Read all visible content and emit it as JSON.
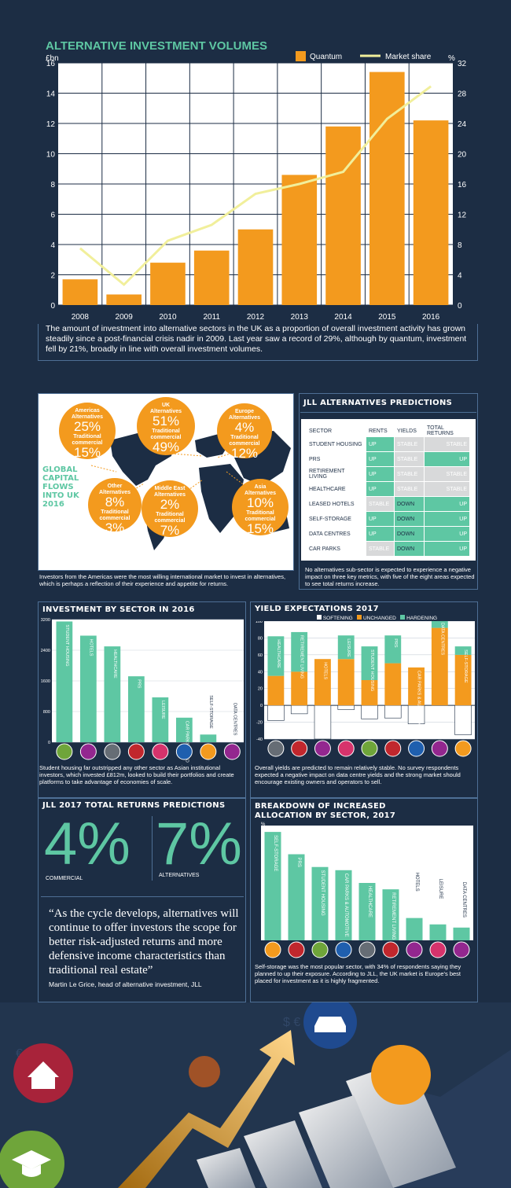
{
  "volumes": {
    "title": "ALTERNATIVE INVESTMENT VOLUMES",
    "left_unit": "£bn",
    "right_unit": "%",
    "legend_bar": "Quantum",
    "legend_line": "Market share",
    "caption": "The amount of investment into alternative sectors in the UK as a proportion of overall investment activity has grown steadily since a post-financial crisis nadir in 2009. Last year saw a record of 29%, although by quantum, investment fell by 21%, broadly in line with overall investment volumes."
  },
  "flows": {
    "title": "GLOBAL CAPITAL FLOWS INTO UK 2016",
    "title_lines": [
      "GLOBAL",
      "CAPITAL",
      "FLOWS",
      "INTO UK",
      "2016"
    ],
    "regions": [
      {
        "name": "Americas",
        "alt_label": "Alternatives",
        "alt": "25%",
        "trad_label": "Traditional commercial",
        "trad": "15%"
      },
      {
        "name": "UK",
        "alt_label": "Alternatives",
        "alt": "51%",
        "trad_label": "Traditional commercial",
        "trad": "49%"
      },
      {
        "name": "Europe",
        "alt_label": "Alternatives",
        "alt": "4%",
        "trad_label": "Traditional commercial",
        "trad": "12%"
      },
      {
        "name": "Other",
        "alt_label": "Alternatives",
        "alt": "8%",
        "trad_label": "Traditional commercial",
        "trad": "3%"
      },
      {
        "name": "Middle East",
        "alt_label": "Alternatives",
        "alt": "2%",
        "trad_label": "Traditional commercial",
        "trad": "7%"
      },
      {
        "name": "Asia",
        "alt_label": "Alternatives",
        "alt": "10%",
        "trad_label": "Traditional commercial",
        "trad": "15%"
      }
    ],
    "caption": "Investors from the Americas were the most willing international market to invest in alternatives, which is perhaps a reflection of their experience and appetite for returns."
  },
  "predictions": {
    "title": "JLL ALTERNATIVES PREDICTIONS",
    "headers": [
      "SECTOR",
      "RENTS",
      "YIELDS",
      "TOTAL RETURNS"
    ],
    "rows": [
      [
        "STUDENT HOUSING",
        "UP",
        "STABLE",
        "STABLE"
      ],
      [
        "PRS",
        "UP",
        "STABLE",
        "UP"
      ],
      [
        "RETIREMENT LIVING",
        "UP",
        "STABLE",
        "STABLE"
      ],
      [
        "HEALTHCARE",
        "UP",
        "STABLE",
        "STABLE"
      ],
      [
        "LEASED HOTELS",
        "STABLE",
        "DOWN",
        "UP"
      ],
      [
        "SELF-STORAGE",
        "UP",
        "DOWN",
        "UP"
      ],
      [
        "DATA CENTRES",
        "UP",
        "DOWN",
        "UP"
      ],
      [
        "CAR PARKS",
        "STABLE",
        "DOWN",
        "UP"
      ]
    ],
    "caption": "No alternatives sub-sector is expected to experience a negative impact on three key metrics, with five of the eight areas expected to see total returns increase."
  },
  "sector_invest": {
    "title": "INVESTMENT BY SECTOR IN 2016",
    "caption": "Student housing far outstripped any other sector as Asian institutional investors, which invested £812m, looked to build their portfolios and create platforms to take advantage of economies of scale."
  },
  "yield": {
    "title": "YIELD EXPECTATIONS 2017",
    "legend": [
      "SOFTENING",
      "UNCHANGED",
      "HARDENING"
    ],
    "caption": "Overall yields are predicted to remain relatively stable. No survey respondents expected a negative impact on data centre yields and the strong market should encourage existing owners and operators to sell."
  },
  "returns": {
    "title": "JLL 2017 TOTAL RETURNS PREDICTIONS",
    "commercial_value": "4%",
    "commercial_label": "COMMERCIAL",
    "alternatives_value": "7%",
    "alternatives_label": "ALTERNATIVES",
    "quote": "“As the cycle develops, alternatives will continue to offer investors the scope for better risk-adjusted returns and more defensive income characteristics than traditional real estate”",
    "attribution": "Martin Le Grice, head of alternative investment, JLL"
  },
  "allocation": {
    "title_line1": "BREAKDOWN OF INCREASED",
    "title_line2": "ALLOCATION BY SECTOR, 2017",
    "unit": "%",
    "caption": "Self-storage was the most popular sector, with 34% of respondents saying they planned to up their exposure. According to JLL, the UK market is Europe's best placed for investment as it is highly fragmented."
  },
  "colors": {
    "orange": "#f39a1e",
    "teal": "#5ec7a3",
    "navy": "#1c2d44",
    "purple": "#93278f",
    "line": "#f1ef9b"
  },
  "chart_data": [
    {
      "type": "bar",
      "title": "ALTERNATIVE INVESTMENT VOLUMES",
      "categories": [
        "2008",
        "2009",
        "2010",
        "2011",
        "2012",
        "2013",
        "2014",
        "2015",
        "2016"
      ],
      "series": [
        {
          "name": "Quantum",
          "axis": "left",
          "values": [
            1.7,
            0.7,
            2.8,
            3.6,
            5.0,
            8.6,
            11.8,
            15.4,
            12.2
          ]
        },
        {
          "name": "Market share",
          "axis": "right",
          "type": "line",
          "values": [
            7.5,
            2.7,
            8.5,
            10.6,
            14.7,
            16.0,
            17.6,
            24.6,
            28.9
          ]
        }
      ],
      "ylabel": "£bn",
      "ylim": [
        0,
        16
      ],
      "yticks": [
        0,
        2,
        4,
        6,
        8,
        10,
        12,
        14,
        16
      ],
      "y2label": "%",
      "y2lim": [
        0,
        32
      ],
      "y2ticks": [
        0,
        4,
        8,
        12,
        16,
        20,
        24,
        28,
        32
      ],
      "grid": true,
      "legend": "top-right"
    },
    {
      "type": "bar",
      "title": "INVESTMENT BY SECTOR IN 2016",
      "categories": [
        "STUDENT HOUSING",
        "HOTELS",
        "HEALTHCARE",
        "PRS",
        "LEISURE",
        "CAR PARKS & AUTOMOTIVE",
        "SELF-STORAGE",
        "DATA CENTRES"
      ],
      "values": [
        3150,
        2780,
        2500,
        1720,
        1170,
        640,
        200,
        0
      ],
      "ylim": [
        0,
        3200
      ],
      "yticks": [
        0,
        800,
        1600,
        2400,
        3200
      ],
      "grid": true
    },
    {
      "type": "bar",
      "title": "YIELD EXPECTATIONS 2017",
      "categories": [
        "HEALTHCARE",
        "RETIREMENT LIVING",
        "HOTELS",
        "LEISURE",
        "STUDENT HOUSING",
        "PRS",
        "CAR PARKS & AUTOMOTIVE",
        "DATA CENTRES",
        "SELF-STORAGE"
      ],
      "series": [
        {
          "name": "SOFTENING",
          "values": [
            -18,
            -10,
            -40,
            -5,
            -16,
            -15,
            -22,
            0,
            -35
          ]
        },
        {
          "name": "UNCHANGED",
          "values": [
            35,
            40,
            55,
            55,
            30,
            50,
            45,
            92,
            60
          ]
        },
        {
          "name": "HARDENING",
          "values": [
            47,
            47,
            0,
            28,
            40,
            33,
            0,
            10,
            10
          ]
        }
      ],
      "ylim": [
        -40,
        100
      ],
      "yticks": [
        -40,
        -20,
        0,
        20,
        40,
        60,
        80,
        100
      ],
      "legend": "top",
      "grid": true
    },
    {
      "type": "bar",
      "title": "BREAKDOWN OF INCREASED ALLOCATION BY SECTOR, 2017",
      "categories": [
        "SELF-STORAGE",
        "PRS",
        "STUDENT HOUSING",
        "CAR PARKS & AUTOMOTIVE",
        "HEALTHCARE",
        "RETIREMENT LIVING",
        "HOTELS",
        "LEISURE",
        "DATA CENTRES"
      ],
      "values": [
        34,
        27,
        23,
        22,
        18,
        16,
        7,
        5,
        4
      ],
      "ylabel": "%",
      "ylim": [
        0,
        36
      ],
      "grid": false
    }
  ]
}
